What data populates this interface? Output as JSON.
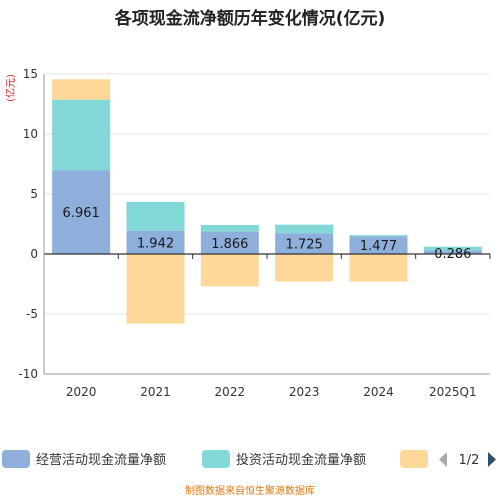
{
  "chart_data": {
    "type": "bar",
    "stacked": true,
    "title": "各项现金流净额历年变化情况(亿元)",
    "ylabel": "(亿元)",
    "categories": [
      "2020",
      "2021",
      "2022",
      "2023",
      "2024",
      "2025Q1"
    ],
    "ylim": [
      -10,
      15
    ],
    "yticks": [
      15,
      10,
      5,
      0,
      -5,
      -10
    ],
    "ytick_labels": [
      "15",
      "10",
      "5",
      "0",
      "-5",
      "-10"
    ],
    "grid": true,
    "series": [
      {
        "name": "经营活动现金流量净额",
        "color": "#8eaedc",
        "values": [
          6.961,
          1.942,
          1.866,
          1.725,
          1.477,
          0.286
        ],
        "data_labels": [
          "6.961",
          "1.942",
          "1.866",
          "1.725",
          "1.477",
          "0.286"
        ]
      },
      {
        "name": "投资活动现金流量净额",
        "color": "#82d7d7",
        "values": [
          5.9,
          2.4,
          0.55,
          0.72,
          0.1,
          0.32
        ]
      },
      {
        "name": "",
        "color": "#fdd898",
        "values": [
          1.7,
          -5.8,
          -2.7,
          -2.3,
          -2.3,
          0.0
        ]
      }
    ],
    "legend": {
      "position": "bottom",
      "page": "1/2"
    }
  },
  "source": "制图数据来自恒生聚源数据库"
}
